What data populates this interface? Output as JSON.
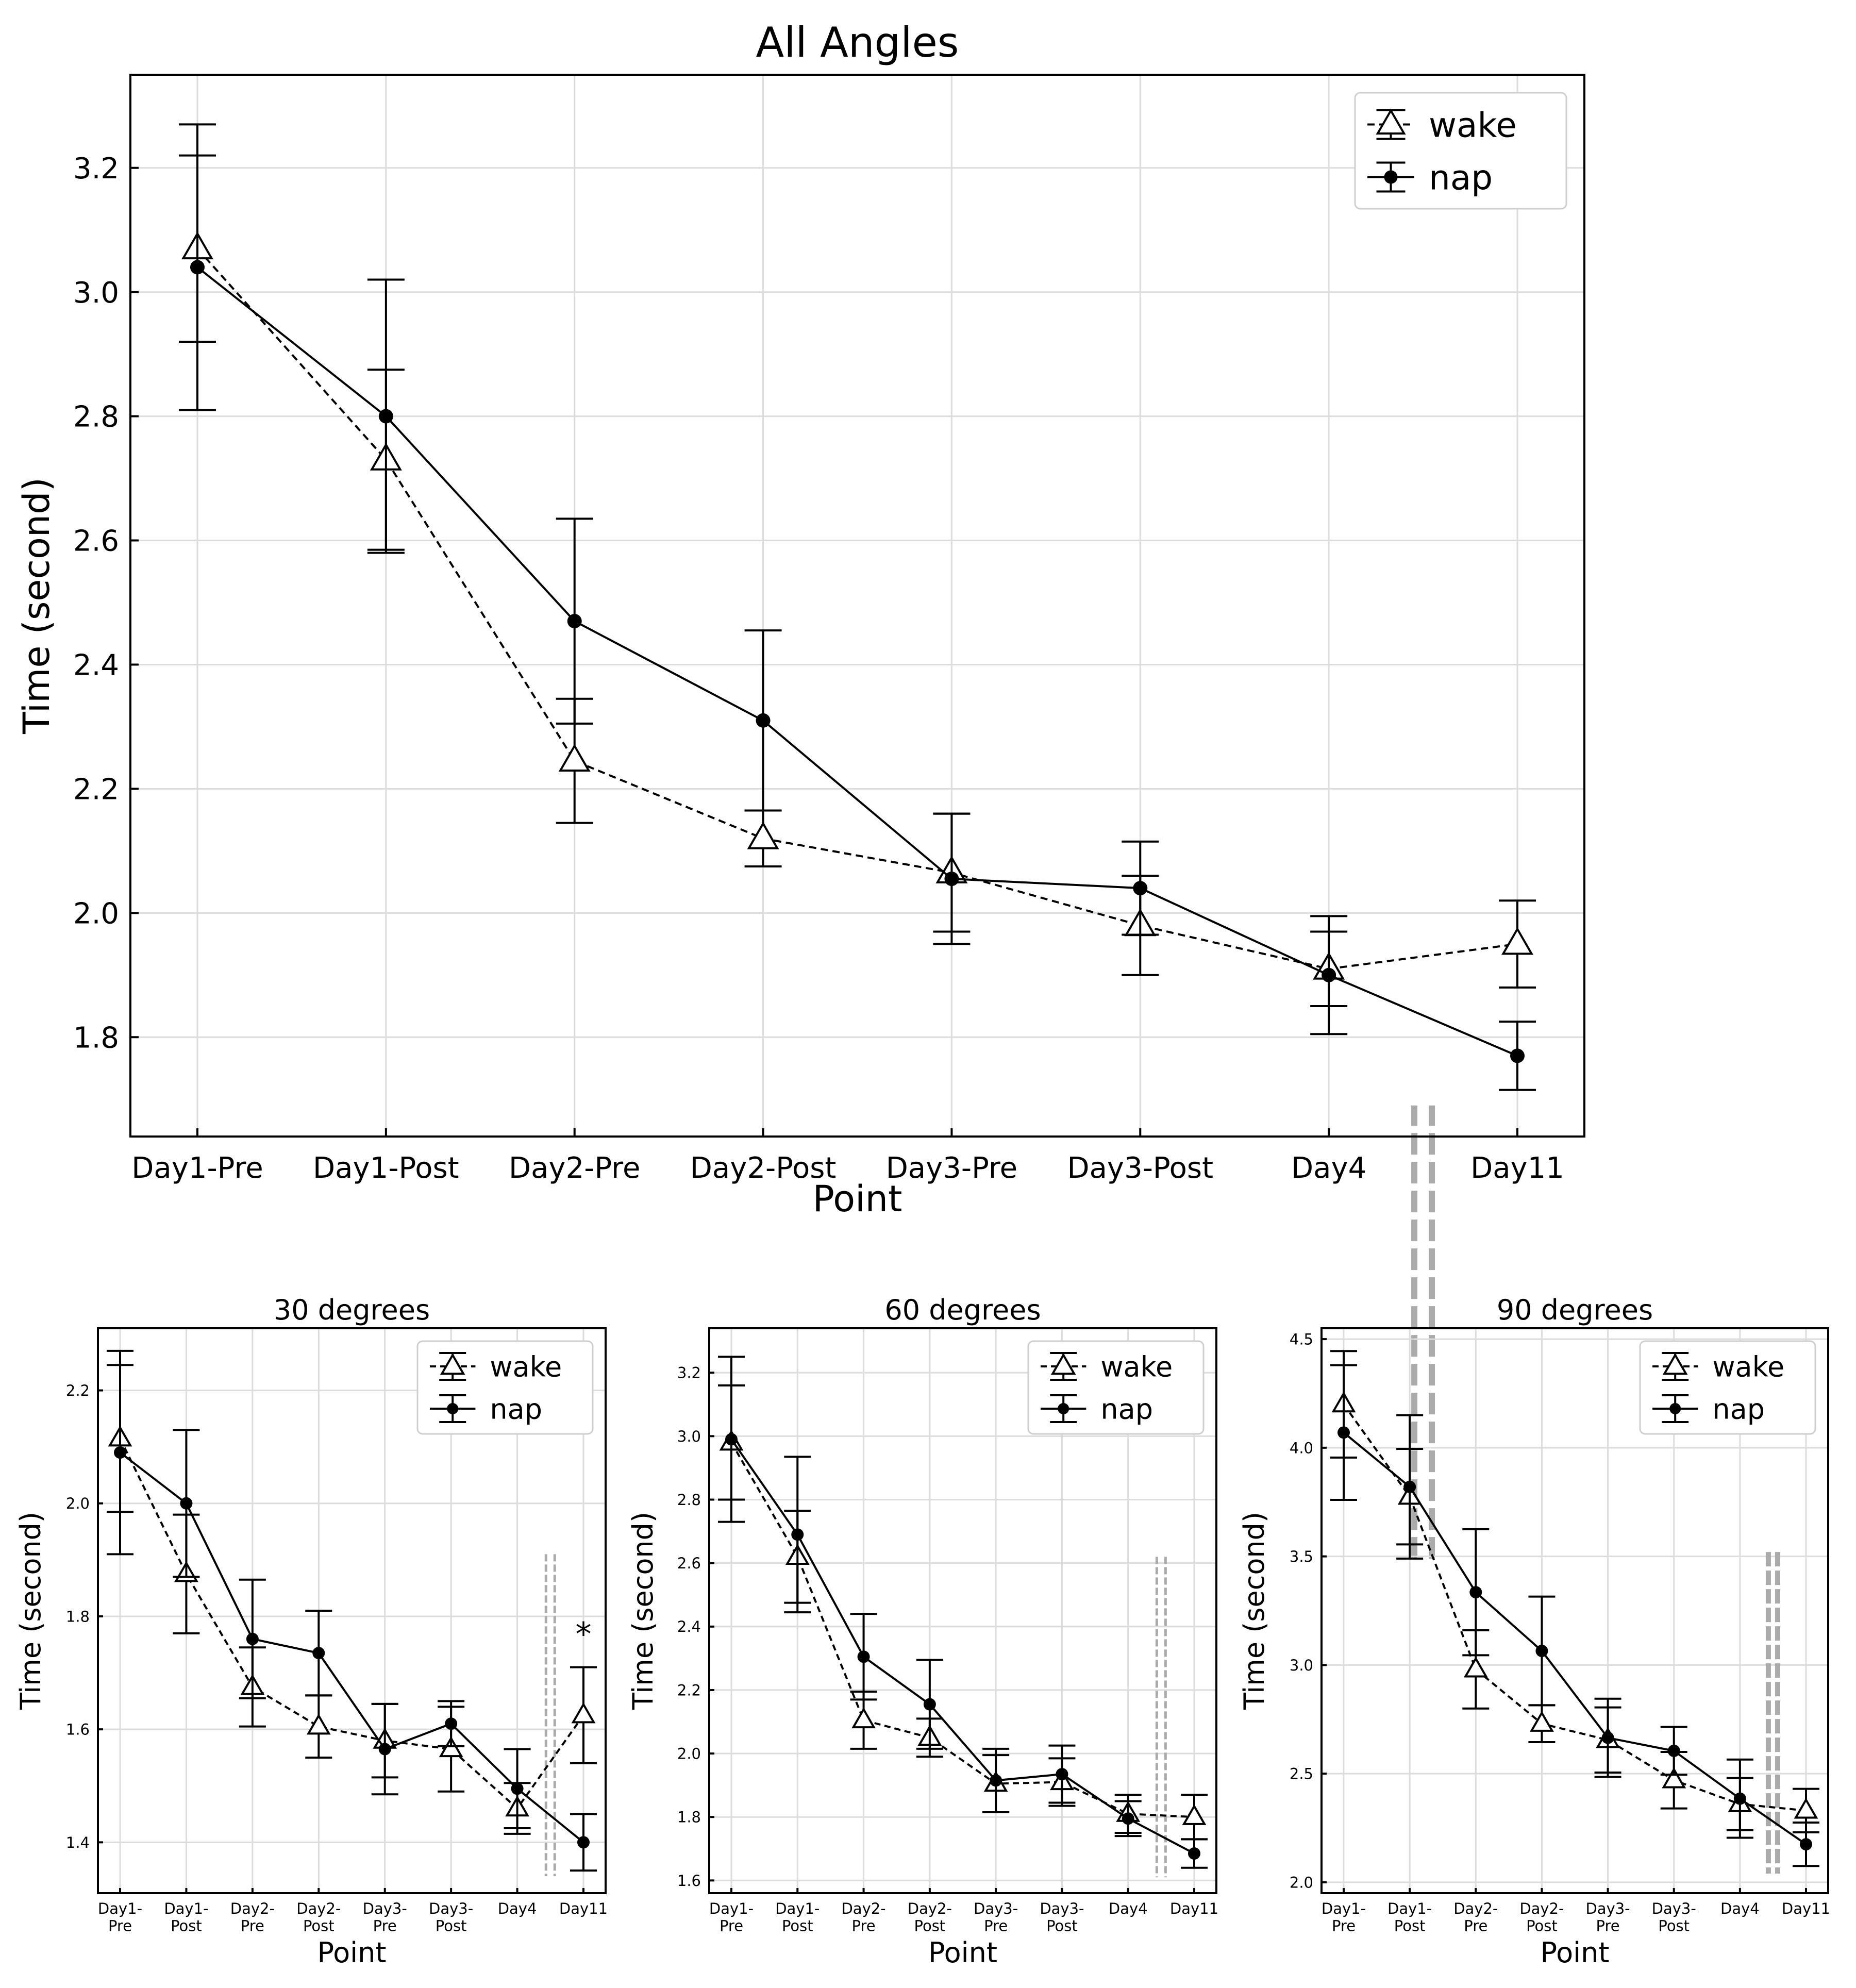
{
  "colors": {
    "line": "#000000",
    "grid": "#dcdcdc",
    "separator": "#ababab",
    "background": "#ffffff"
  },
  "chart_data": [
    {
      "id": "main",
      "type": "line",
      "title": "All Angles",
      "xlabel": "Point",
      "ylabel": "Time (second)",
      "categories": [
        "Day1-Pre",
        "Day1-Post",
        "Day2-Pre",
        "Day2-Post",
        "Day3-Pre",
        "Day3-Post",
        "Day4",
        "Day11"
      ],
      "ylim": [
        1.64,
        3.35
      ],
      "yticks": [
        "1.8",
        "2.0",
        "2.2",
        "2.4",
        "2.6",
        "2.8",
        "3.0",
        "3.2"
      ],
      "grid": true,
      "legend_position": "top-right",
      "gap_after_index": 6,
      "series": [
        {
          "name": "wake",
          "marker": "triangle-open",
          "dash": true,
          "values": [
            3.07,
            2.73,
            2.245,
            2.12,
            2.065,
            1.98,
            1.91,
            1.95
          ],
          "errors": [
            0.15,
            0.145,
            0.1,
            0.045,
            0.095,
            0.08,
            0.06,
            0.07
          ]
        },
        {
          "name": "nap",
          "marker": "circle-filled",
          "dash": false,
          "values": [
            3.04,
            2.8,
            2.47,
            2.31,
            2.055,
            2.04,
            1.9,
            1.77
          ],
          "errors": [
            0.23,
            0.22,
            0.165,
            0.145,
            0.105,
            0.075,
            0.095,
            0.055
          ]
        }
      ],
      "annotations": []
    },
    {
      "id": "deg30",
      "type": "line",
      "title": "30 degrees",
      "xlabel": "Point",
      "ylabel": "Time (second)",
      "categories": [
        "Day1-\nPre",
        "Day1-\nPost",
        "Day2-\nPre",
        "Day2-\nPost",
        "Day3-\nPre",
        "Day3-\nPost",
        "Day4",
        "Day11"
      ],
      "ylim": [
        1.31,
        2.31
      ],
      "yticks": [
        "1.4",
        "1.6",
        "1.8",
        "2.0",
        "2.2"
      ],
      "grid": true,
      "legend_position": "top-right",
      "gap_after_index": 6,
      "series": [
        {
          "name": "wake",
          "marker": "triangle-open",
          "dash": true,
          "values": [
            2.115,
            1.875,
            1.675,
            1.605,
            1.58,
            1.565,
            1.46,
            1.625
          ],
          "errors": [
            0.13,
            0.105,
            0.07,
            0.055,
            0.065,
            0.075,
            0.045,
            0.085
          ]
        },
        {
          "name": "nap",
          "marker": "circle-filled",
          "dash": false,
          "values": [
            2.09,
            2.0,
            1.76,
            1.735,
            1.565,
            1.61,
            1.495,
            1.4
          ],
          "errors": [
            0.18,
            0.13,
            0.105,
            0.075,
            0.08,
            0.04,
            0.07,
            0.05
          ]
        }
      ],
      "annotations": [
        {
          "text": "*",
          "category_index": 7,
          "y": 1.78
        }
      ]
    },
    {
      "id": "deg60",
      "type": "line",
      "title": "60 degrees",
      "xlabel": "Point",
      "ylabel": "Time (second)",
      "categories": [
        "Day1-\nPre",
        "Day1-\nPost",
        "Day2-\nPre",
        "Day2-\nPost",
        "Day3-\nPre",
        "Day3-\nPost",
        "Day4",
        "Day11"
      ],
      "ylim": [
        1.56,
        3.34
      ],
      "yticks": [
        "1.6",
        "1.8",
        "2.0",
        "2.2",
        "2.4",
        "2.6",
        "2.8",
        "3.0",
        "3.2"
      ],
      "grid": true,
      "legend_position": "top-right",
      "gap_after_index": 6,
      "series": [
        {
          "name": "wake",
          "marker": "triangle-open",
          "dash": true,
          "values": [
            2.98,
            2.62,
            2.105,
            2.05,
            1.905,
            1.91,
            1.81,
            1.8
          ],
          "errors": [
            0.18,
            0.145,
            0.09,
            0.06,
            0.09,
            0.075,
            0.06,
            0.07
          ]
        },
        {
          "name": "nap",
          "marker": "circle-filled",
          "dash": false,
          "values": [
            2.99,
            2.69,
            2.305,
            2.155,
            1.915,
            1.935,
            1.795,
            1.685
          ],
          "errors": [
            0.26,
            0.245,
            0.135,
            0.14,
            0.1,
            0.09,
            0.055,
            0.045
          ]
        }
      ],
      "annotations": []
    },
    {
      "id": "deg90",
      "type": "line",
      "title": "90 degrees",
      "xlabel": "Point",
      "ylabel": "Time (second)",
      "categories": [
        "Day1-\nPre",
        "Day1-\nPost",
        "Day2-\nPre",
        "Day2-\nPost",
        "Day3-\nPre",
        "Day3-\nPost",
        "Day4",
        "Day11"
      ],
      "ylim": [
        1.95,
        4.55
      ],
      "yticks": [
        "2.0",
        "2.5",
        "3.0",
        "3.5",
        "4.0",
        "4.5"
      ],
      "grid": true,
      "legend_position": "top-right",
      "gap_after_index": 6,
      "series": [
        {
          "name": "wake",
          "marker": "triangle-open",
          "dash": true,
          "values": [
            4.2,
            3.775,
            2.98,
            2.73,
            2.655,
            2.47,
            2.36,
            2.33
          ],
          "errors": [
            0.245,
            0.22,
            0.18,
            0.085,
            0.15,
            0.13,
            0.12,
            0.1
          ]
        },
        {
          "name": "nap",
          "marker": "circle-filled",
          "dash": false,
          "values": [
            4.07,
            3.82,
            3.335,
            3.065,
            2.665,
            2.605,
            2.385,
            2.175
          ],
          "errors": [
            0.31,
            0.33,
            0.29,
            0.25,
            0.18,
            0.11,
            0.18,
            0.1
          ]
        }
      ],
      "annotations": []
    }
  ]
}
